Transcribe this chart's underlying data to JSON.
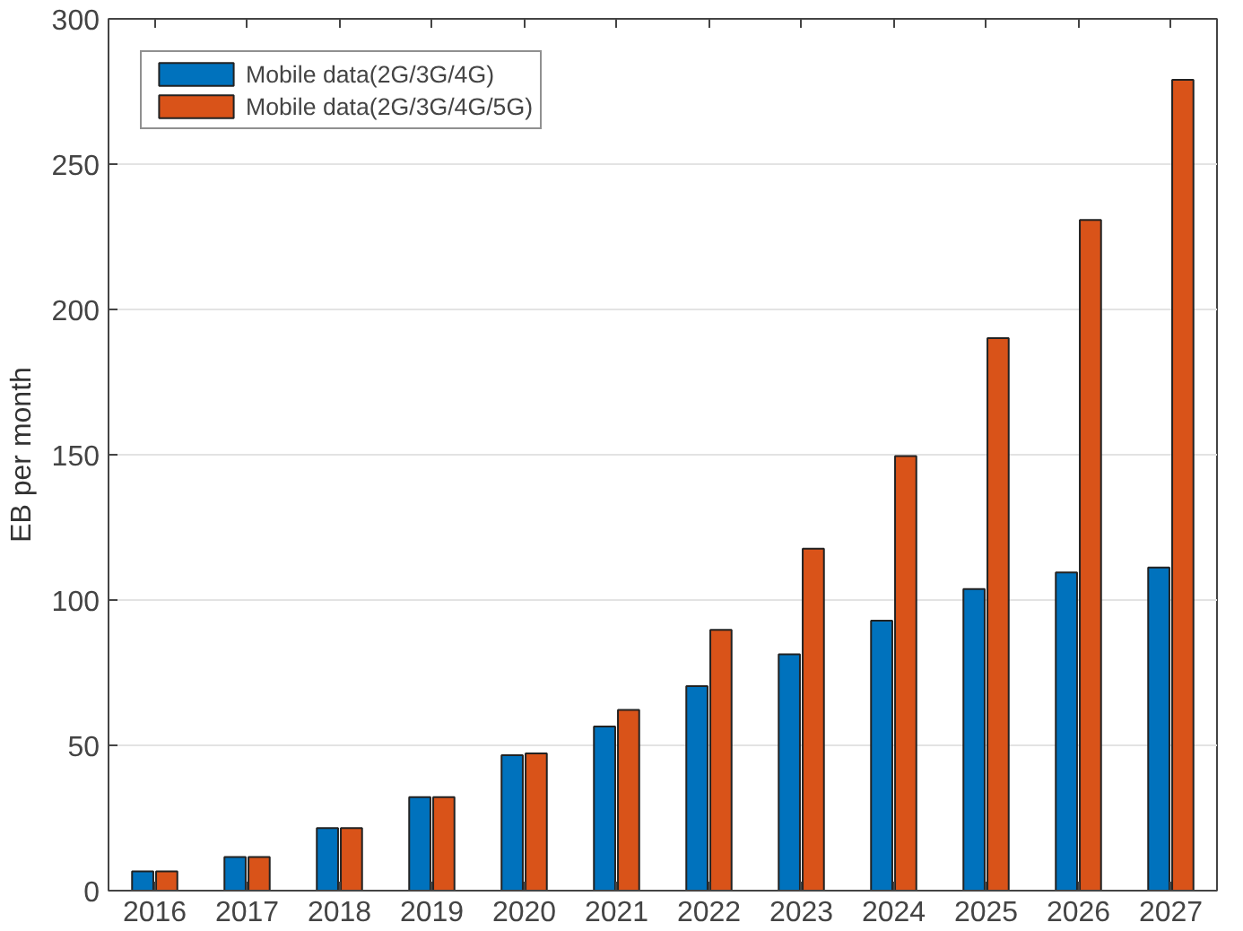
{
  "chart_data": {
    "type": "bar",
    "ylabel": "EB per month",
    "categories": [
      "2016",
      "2017",
      "2018",
      "2019",
      "2020",
      "2021",
      "2022",
      "2023",
      "2024",
      "2025",
      "2026",
      "2027"
    ],
    "series": [
      {
        "name": "Mobile data(2G/3G/4G)",
        "color": "#0072bd",
        "values": [
          6.6,
          11.6,
          21.5,
          32.2,
          46.6,
          56.5,
          70.4,
          81.3,
          92.9,
          103.8,
          109.5,
          111.2
        ]
      },
      {
        "name": "Mobile data(2G/3G/4G/5G)",
        "color": "#d95319",
        "values": [
          6.6,
          11.6,
          21.5,
          32.2,
          47.2,
          62.2,
          89.7,
          117.7,
          149.5,
          190.1,
          230.8,
          279
        ]
      }
    ],
    "ylim": [
      0,
      300
    ],
    "yticks": [
      0,
      50,
      100,
      150,
      200,
      250,
      300
    ],
    "grid": "y",
    "legend": "top left"
  }
}
